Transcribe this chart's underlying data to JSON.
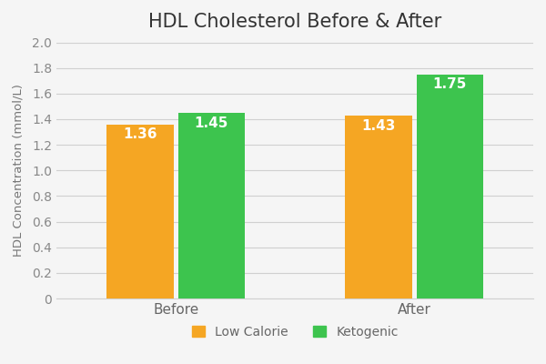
{
  "title": "HDL Cholesterol Before & After",
  "ylabel": "HDL Concentration (mmol/L)",
  "categories": [
    "Before",
    "After"
  ],
  "series": {
    "Low Calorie": [
      1.36,
      1.43
    ],
    "Ketogenic": [
      1.45,
      1.75
    ]
  },
  "colors": {
    "Low Calorie": "#F5A623",
    "Ketogenic": "#3DC44E"
  },
  "ylim": [
    0,
    2.0
  ],
  "yticks": [
    0,
    0.2,
    0.4,
    0.6,
    0.8,
    1.0,
    1.2,
    1.4,
    1.6,
    1.8,
    2.0
  ],
  "bar_width": 0.28,
  "label_fontsize": 11,
  "title_fontsize": 15,
  "tick_fontsize": 10,
  "legend_fontsize": 10,
  "background_color": "#f5f5f5",
  "grid_color": "#d0d0d0",
  "label_color": "#ffffff",
  "tick_color": "#888888",
  "xtick_color": "#666666"
}
